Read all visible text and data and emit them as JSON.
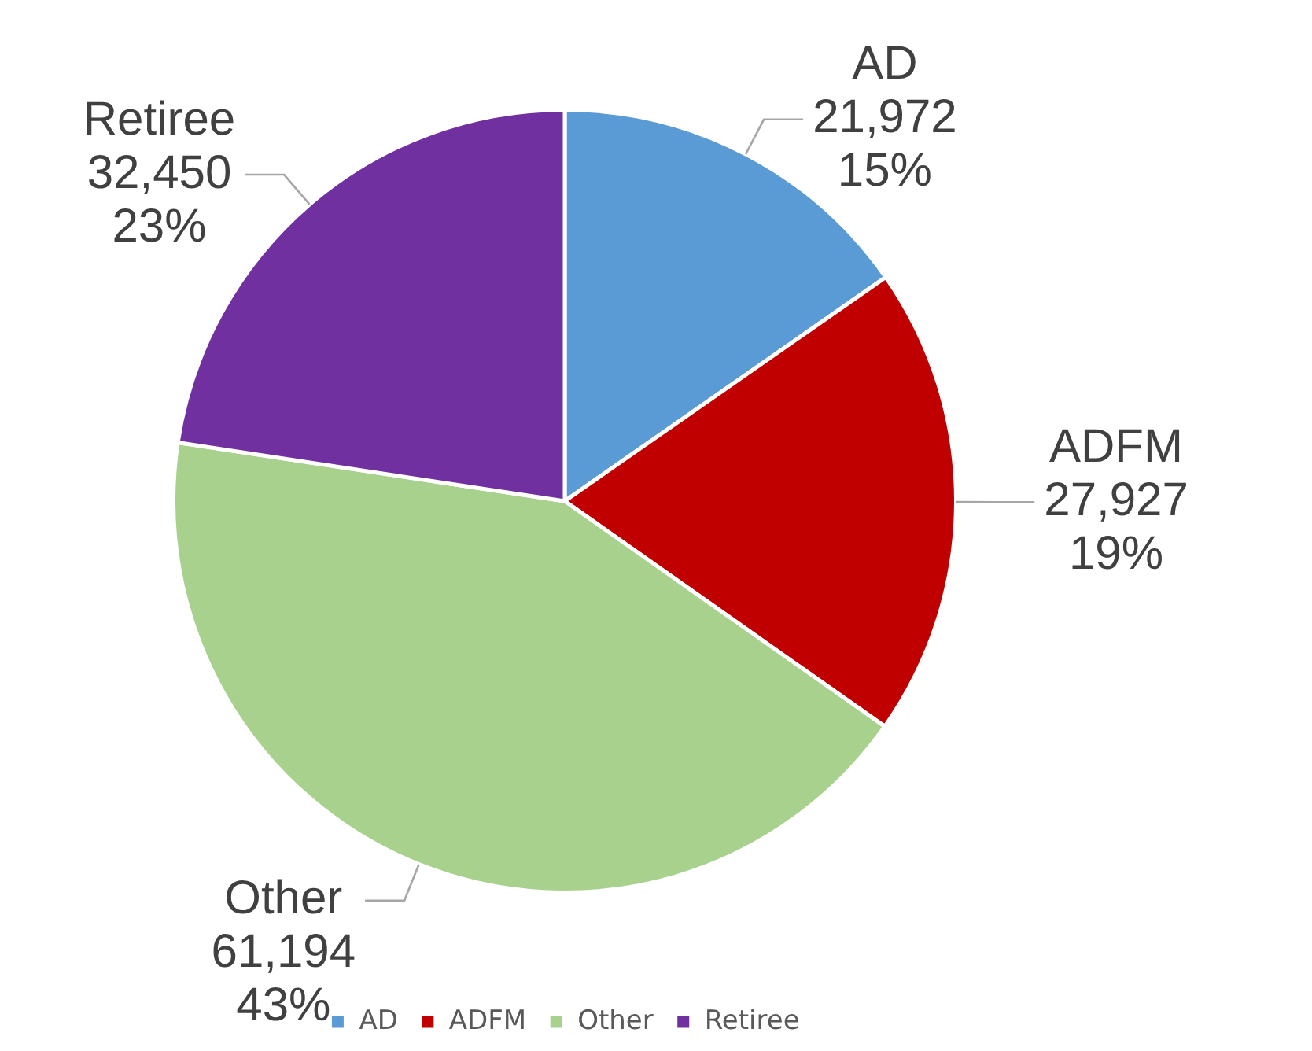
{
  "chart_data": {
    "type": "pie",
    "categories": [
      "AD",
      "ADFM",
      "Other",
      "Retiree"
    ],
    "values": [
      21972,
      27927,
      61194,
      32450
    ],
    "colors": [
      "#5b9bd5",
      "#c00000",
      "#a9d18e",
      "#7030a0"
    ],
    "value_labels": [
      "21,972\n15%",
      "27,927\n19%",
      "61,194\n43%",
      "32,450\n23%"
    ],
    "legend": "bottom"
  }
}
